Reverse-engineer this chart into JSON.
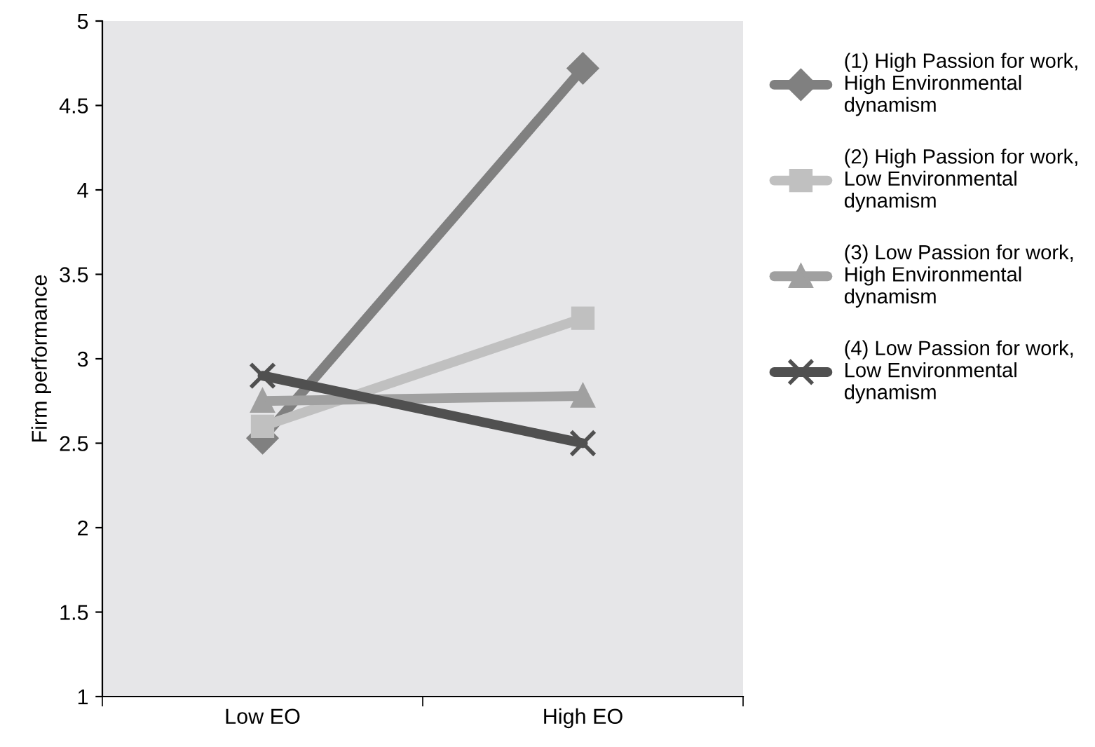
{
  "chart_data": {
    "type": "line",
    "ylabel": "Firm performance",
    "categories": [
      "Low EO",
      "High EO"
    ],
    "ylim": [
      1,
      5
    ],
    "yticks": [
      1,
      1.5,
      2,
      2.5,
      3,
      3.5,
      4,
      4.5,
      5
    ],
    "grid": false,
    "legend": "right",
    "series": [
      {
        "name": "(1) High Passion for work,\nHigh Environmental\ndynamism",
        "color": "#808080",
        "marker": "diamond",
        "values": [
          2.53,
          4.72
        ]
      },
      {
        "name": "(2) High Passion for work,\nLow Environmental\ndynamism",
        "color": "#c0c0c0",
        "marker": "square",
        "values": [
          2.6,
          3.24
        ]
      },
      {
        "name": "(3) Low Passion for work,\nHigh Environmental\ndynamism",
        "color": "#a0a0a0",
        "marker": "triangle",
        "values": [
          2.75,
          2.78
        ]
      },
      {
        "name": "(4) Low Passion for work,\nLow Environmental\ndynamism",
        "color": "#505050",
        "marker": "cross",
        "values": [
          2.9,
          2.5
        ]
      }
    ]
  }
}
